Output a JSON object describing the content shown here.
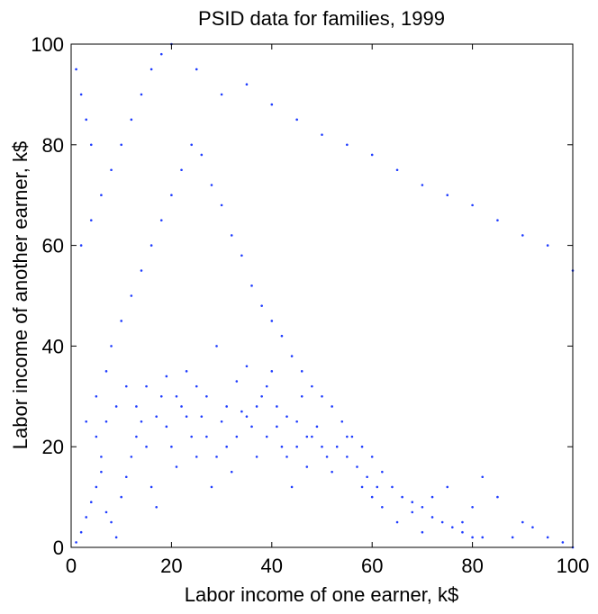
{
  "chart_data": {
    "type": "scatter",
    "title": "PSID data for families, 1999",
    "xlabel": "Labor income of one earner, k$",
    "ylabel": "Labor income of another earner, k$",
    "xlim": [
      0,
      100
    ],
    "ylim": [
      0,
      100
    ],
    "xticks": [
      0,
      20,
      40,
      60,
      80,
      100
    ],
    "yticks": [
      0,
      20,
      40,
      60,
      80,
      100
    ],
    "xtick_labels": [
      "0",
      "20",
      "40",
      "60",
      "80",
      "100"
    ],
    "ytick_labels": [
      "0",
      "20",
      "40",
      "60",
      "80",
      "100"
    ],
    "grid": false,
    "legend": "none",
    "point_color": "#1f3cff",
    "series": [
      {
        "points": [
          [
            1,
            1
          ],
          [
            2,
            3
          ],
          [
            3,
            6
          ],
          [
            4,
            9
          ],
          [
            5,
            12
          ],
          [
            6,
            15
          ],
          [
            7,
            7
          ],
          [
            8,
            5
          ],
          [
            9,
            2
          ],
          [
            10,
            10
          ],
          [
            11,
            14
          ],
          [
            12,
            18
          ],
          [
            13,
            22
          ],
          [
            14,
            25
          ],
          [
            15,
            20
          ],
          [
            16,
            12
          ],
          [
            17,
            8
          ],
          [
            18,
            30
          ],
          [
            19,
            24
          ],
          [
            20,
            20
          ],
          [
            21,
            16
          ],
          [
            22,
            28
          ],
          [
            23,
            35
          ],
          [
            24,
            22
          ],
          [
            25,
            18
          ],
          [
            26,
            26
          ],
          [
            27,
            30
          ],
          [
            28,
            12
          ],
          [
            29,
            40
          ],
          [
            30,
            25
          ],
          [
            31,
            20
          ],
          [
            32,
            15
          ],
          [
            33,
            33
          ],
          [
            34,
            27
          ],
          [
            35,
            36
          ],
          [
            36,
            24
          ],
          [
            37,
            18
          ],
          [
            38,
            30
          ],
          [
            39,
            22
          ],
          [
            40,
            35
          ],
          [
            41,
            28
          ],
          [
            42,
            20
          ],
          [
            43,
            18
          ],
          [
            44,
            12
          ],
          [
            45,
            25
          ],
          [
            46,
            30
          ],
          [
            47,
            16
          ],
          [
            48,
            22
          ],
          [
            50,
            20
          ],
          [
            52,
            15
          ],
          [
            55,
            18
          ],
          [
            58,
            12
          ],
          [
            60,
            10
          ],
          [
            62,
            8
          ],
          [
            65,
            5
          ],
          [
            68,
            7
          ],
          [
            70,
            3
          ],
          [
            72,
            10
          ],
          [
            75,
            12
          ],
          [
            78,
            5
          ],
          [
            80,
            8
          ],
          [
            82,
            14
          ],
          [
            85,
            10
          ],
          [
            88,
            2
          ],
          [
            90,
            5
          ],
          [
            92,
            4
          ],
          [
            95,
            2
          ],
          [
            98,
            1
          ],
          [
            100,
            0
          ],
          [
            3,
            25
          ],
          [
            5,
            30
          ],
          [
            7,
            35
          ],
          [
            8,
            40
          ],
          [
            10,
            45
          ],
          [
            12,
            50
          ],
          [
            14,
            55
          ],
          [
            16,
            60
          ],
          [
            18,
            65
          ],
          [
            20,
            70
          ],
          [
            22,
            75
          ],
          [
            24,
            80
          ],
          [
            26,
            78
          ],
          [
            28,
            72
          ],
          [
            30,
            68
          ],
          [
            32,
            62
          ],
          [
            34,
            58
          ],
          [
            36,
            52
          ],
          [
            38,
            48
          ],
          [
            40,
            45
          ],
          [
            42,
            42
          ],
          [
            44,
            38
          ],
          [
            46,
            35
          ],
          [
            48,
            32
          ],
          [
            50,
            30
          ],
          [
            52,
            28
          ],
          [
            54,
            25
          ],
          [
            56,
            22
          ],
          [
            58,
            20
          ],
          [
            60,
            18
          ],
          [
            62,
            15
          ],
          [
            64,
            12
          ],
          [
            66,
            10
          ],
          [
            68,
            9
          ],
          [
            70,
            8
          ],
          [
            72,
            6
          ],
          [
            74,
            5
          ],
          [
            76,
            4
          ],
          [
            78,
            3
          ],
          [
            80,
            2
          ],
          [
            82,
            2
          ],
          [
            2,
            60
          ],
          [
            4,
            65
          ],
          [
            6,
            70
          ],
          [
            8,
            75
          ],
          [
            10,
            80
          ],
          [
            12,
            85
          ],
          [
            14,
            90
          ],
          [
            16,
            95
          ],
          [
            18,
            98
          ],
          [
            20,
            100
          ],
          [
            25,
            95
          ],
          [
            30,
            90
          ],
          [
            35,
            92
          ],
          [
            40,
            88
          ],
          [
            45,
            85
          ],
          [
            50,
            82
          ],
          [
            55,
            80
          ],
          [
            60,
            78
          ],
          [
            65,
            75
          ],
          [
            70,
            72
          ],
          [
            75,
            70
          ],
          [
            80,
            68
          ],
          [
            85,
            65
          ],
          [
            90,
            62
          ],
          [
            95,
            60
          ],
          [
            100,
            55
          ],
          [
            1,
            95
          ],
          [
            2,
            90
          ],
          [
            3,
            85
          ],
          [
            4,
            80
          ],
          [
            5,
            22
          ],
          [
            6,
            18
          ],
          [
            7,
            25
          ],
          [
            9,
            28
          ],
          [
            11,
            32
          ],
          [
            13,
            28
          ],
          [
            15,
            32
          ],
          [
            17,
            26
          ],
          [
            19,
            34
          ],
          [
            21,
            30
          ],
          [
            23,
            26
          ],
          [
            25,
            32
          ],
          [
            27,
            22
          ],
          [
            29,
            18
          ],
          [
            31,
            28
          ],
          [
            33,
            22
          ],
          [
            35,
            26
          ],
          [
            37,
            28
          ],
          [
            39,
            32
          ],
          [
            41,
            24
          ],
          [
            43,
            26
          ],
          [
            45,
            20
          ],
          [
            47,
            22
          ],
          [
            49,
            24
          ],
          [
            51,
            18
          ],
          [
            53,
            20
          ],
          [
            55,
            22
          ],
          [
            57,
            16
          ],
          [
            59,
            14
          ],
          [
            61,
            12
          ]
        ]
      }
    ]
  }
}
